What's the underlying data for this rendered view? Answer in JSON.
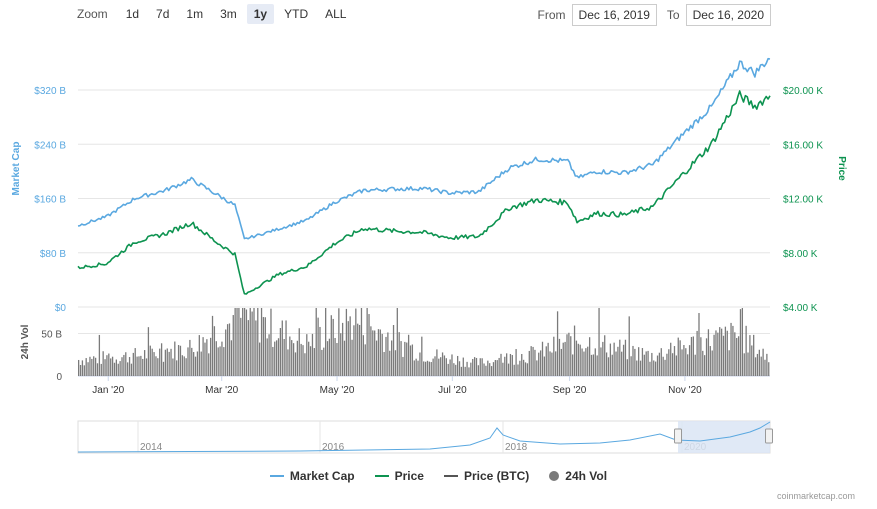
{
  "zoom": {
    "label": "Zoom",
    "options": [
      "1d",
      "7d",
      "1m",
      "3m",
      "1y",
      "YTD",
      "ALL"
    ],
    "selected": "1y"
  },
  "range": {
    "from_label": "From",
    "from": "Dec 16, 2019",
    "to_label": "To",
    "to": "Dec 16, 2020"
  },
  "legend": {
    "items": [
      {
        "label": "Market Cap",
        "color": "#5aa8e0"
      },
      {
        "label": "Price",
        "color": "#0d9350"
      },
      {
        "label": "Price (BTC)",
        "color": "#555555"
      },
      {
        "label": "24h Vol",
        "color": "#7a7a7a"
      }
    ]
  },
  "credits": "coinmarketcap.com",
  "colors": {
    "market_cap": "#5aa8e0",
    "price": "#0d9350",
    "volume": "#7a7a7a",
    "navigator_fill": "#dbe5f5"
  },
  "chart_data": {
    "type": "line",
    "x_tick_labels": [
      "Jan '20",
      "Mar '20",
      "May '20",
      "Jul '20",
      "Sep '20",
      "Nov '20"
    ],
    "x_start": "2019-12-16",
    "x_end": "2020-12-16",
    "y_left": {
      "label": "Market Cap",
      "ticks": [
        "$0",
        "$80 B",
        "$160 B",
        "$240 B",
        "$320 B"
      ],
      "tick_values": [
        0,
        80,
        160,
        240,
        320
      ],
      "unit": "B"
    },
    "y_right": {
      "label": "Price",
      "ticks": [
        "$4.00 K",
        "$8.00 K",
        "$12.00 K",
        "$16.00 K",
        "$20.00 K"
      ],
      "tick_values": [
        4,
        8,
        12,
        16,
        20
      ],
      "unit": "K"
    },
    "volume_axis": {
      "label": "24h Vol",
      "ticks": [
        "0",
        "50 B"
      ],
      "tick_values": [
        0,
        50
      ]
    },
    "navigator_labels": [
      "2014",
      "2016",
      "2018",
      "2020"
    ],
    "series": [
      {
        "name": "Market Cap",
        "axis": "left",
        "dates": [
          "2019-12-16",
          "2019-12-31",
          "2020-01-15",
          "2020-01-31",
          "2020-02-14",
          "2020-02-28",
          "2020-03-08",
          "2020-03-13",
          "2020-03-31",
          "2020-04-15",
          "2020-04-30",
          "2020-05-15",
          "2020-05-31",
          "2020-06-15",
          "2020-06-30",
          "2020-07-15",
          "2020-07-31",
          "2020-08-15",
          "2020-08-31",
          "2020-09-05",
          "2020-09-15",
          "2020-09-30",
          "2020-10-15",
          "2020-10-31",
          "2020-11-15",
          "2020-11-30",
          "2020-12-08",
          "2020-12-16"
        ],
        "values": [
          120,
          133,
          160,
          172,
          188,
          165,
          150,
          100,
          115,
          128,
          155,
          172,
          174,
          175,
          168,
          170,
          205,
          218,
          215,
          190,
          200,
          198,
          210,
          255,
          295,
          360,
          345,
          368
        ]
      },
      {
        "name": "Price",
        "axis": "right",
        "dates": [
          "2019-12-16",
          "2019-12-31",
          "2020-01-15",
          "2020-01-31",
          "2020-02-14",
          "2020-02-28",
          "2020-03-08",
          "2020-03-13",
          "2020-03-31",
          "2020-04-15",
          "2020-04-30",
          "2020-05-15",
          "2020-05-31",
          "2020-06-15",
          "2020-06-30",
          "2020-07-15",
          "2020-07-31",
          "2020-08-15",
          "2020-08-31",
          "2020-09-05",
          "2020-09-15",
          "2020-09-30",
          "2020-10-15",
          "2020-10-31",
          "2020-11-15",
          "2020-11-30",
          "2020-12-08",
          "2020-12-16"
        ],
        "values": [
          6.9,
          7.2,
          8.8,
          9.4,
          10.2,
          8.7,
          7.9,
          4.9,
          6.4,
          7.0,
          8.7,
          9.8,
          9.6,
          9.5,
          9.1,
          9.2,
          11.3,
          11.9,
          11.7,
          10.3,
          10.9,
          10.8,
          11.4,
          13.8,
          16.0,
          19.6,
          18.8,
          19.6
        ]
      },
      {
        "name": "24h Vol",
        "axis": "volume",
        "dates": [
          "2019-12-16",
          "2020-01-15",
          "2020-02-14",
          "2020-03-13",
          "2020-04-15",
          "2020-05-10",
          "2020-06-15",
          "2020-07-15",
          "2020-08-15",
          "2020-09-05",
          "2020-10-15",
          "2020-11-15",
          "2020-12-01",
          "2020-12-16"
        ],
        "values": [
          20,
          25,
          35,
          75,
          40,
          70,
          28,
          16,
          28,
          45,
          25,
          45,
          50,
          22
        ]
      }
    ],
    "grid": true,
    "legend_position": "bottom"
  }
}
